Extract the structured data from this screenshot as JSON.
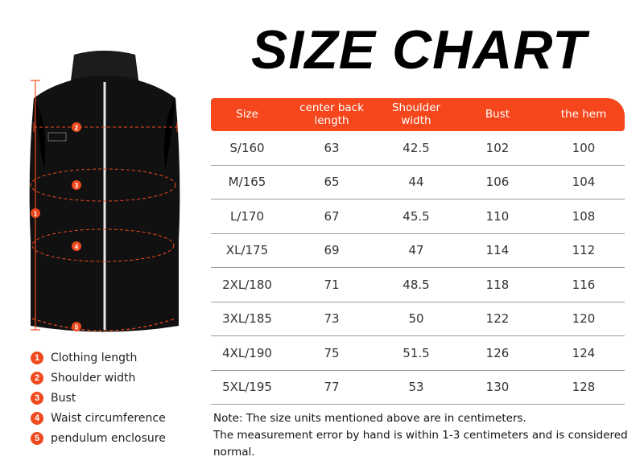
{
  "title": "SIZE CHART",
  "vest": {
    "markers": [
      "1",
      "2",
      "3",
      "4",
      "5"
    ]
  },
  "legend": [
    {
      "num": "1",
      "label": "Clothing length"
    },
    {
      "num": "2",
      "label": "Shoulder width"
    },
    {
      "num": "3",
      "label": "Bust"
    },
    {
      "num": "4",
      "label": "Waist circumference"
    },
    {
      "num": "5",
      "label": "pendulum enclosure"
    }
  ],
  "table": {
    "headers": [
      "Size",
      "center back length",
      "Shoulder width",
      "Bust",
      "the hem"
    ],
    "rows": [
      [
        "S/160",
        "63",
        "42.5",
        "102",
        "100"
      ],
      [
        "M/165",
        "65",
        "44",
        "106",
        "104"
      ],
      [
        "L/170",
        "67",
        "45.5",
        "110",
        "108"
      ],
      [
        "XL/175",
        "69",
        "47",
        "114",
        "112"
      ],
      [
        "2XL/180",
        "71",
        "48.5",
        "118",
        "116"
      ],
      [
        "3XL/185",
        "73",
        "50",
        "122",
        "120"
      ],
      [
        "4XL/190",
        "75",
        "51.5",
        "126",
        "124"
      ],
      [
        "5XL/195",
        "77",
        "53",
        "130",
        "128"
      ]
    ]
  },
  "note": {
    "line1": "Note: The size units mentioned above are in centimeters.",
    "line2": "The measurement error by hand is within 1-3 centimeters and is considered normal."
  },
  "colors": {
    "accent": "#f5461c",
    "vest": "#111111"
  }
}
